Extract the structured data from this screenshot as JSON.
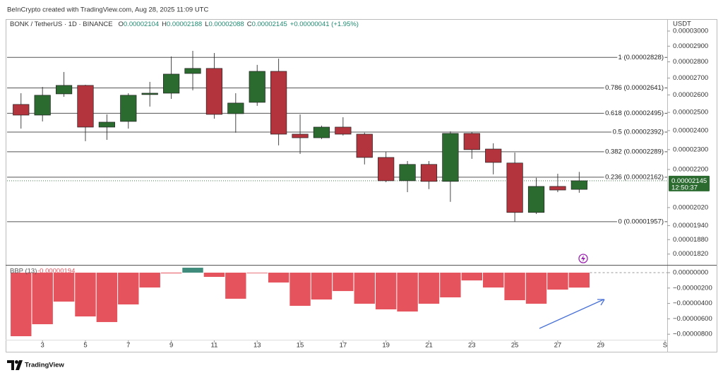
{
  "chart_data": [
    {
      "type": "candlestick",
      "title": "BeInCrypto created with TradingView.com, Aug 28, 2025 11:09 UTC",
      "symbol": "BONK / TetherUS · 1D · BINANCE",
      "ohlc_keys": [
        "O",
        "H",
        "L",
        "C"
      ],
      "change": "+0.00000041 (+1.95%)",
      "currency": "USDT",
      "countdown": "12:50:37",
      "x": [
        2,
        3,
        4,
        5,
        6,
        7,
        8,
        9,
        10,
        11,
        12,
        13,
        14,
        15,
        16,
        17,
        18,
        19,
        20,
        21,
        22,
        23,
        24,
        25,
        26,
        27,
        28
      ],
      "open": [
        2.545e-05,
        2.485e-05,
        2.606e-05,
        2.656e-05,
        2.419e-05,
        2.45e-05,
        2.602e-05,
        2.61e-05,
        2.728e-05,
        2.759e-05,
        2.493e-05,
        2.557e-05,
        2.741e-05,
        2.381e-05,
        2.362e-05,
        2.419e-05,
        2.381e-05,
        2.26e-05,
        2.145e-05,
        2.225e-05,
        2.142e-05,
        2.385e-05,
        2.303e-05,
        2.232e-05,
        1.998e-05,
        2.118e-05,
        2.104e-05
      ],
      "high": [
        2.61e-05,
        2.647e-05,
        2.737e-05,
        2.66e-05,
        2.489e-05,
        2.61e-05,
        2.677e-05,
        2.834e-05,
        2.87e-05,
        2.856e-05,
        2.61e-05,
        2.781e-05,
        2.82e-05,
        2.489e-05,
        2.427e-05,
        2.473e-05,
        2.389e-05,
        2.289e-05,
        2.242e-05,
        2.242e-05,
        2.396e-05,
        2.392e-05,
        2.333e-05,
        2.285e-05,
        2.159e-05,
        2.179e-05,
        2.188e-05
      ],
      "low": [
        2.411e-05,
        2.45e-05,
        2.589e-05,
        2.344e-05,
        2.351e-05,
        2.411e-05,
        2.533e-05,
        2.577e-05,
        2.627e-05,
        2.465e-05,
        2.389e-05,
        2.537e-05,
        2.322e-05,
        2.278e-05,
        2.355e-05,
        2.374e-05,
        2.225e-05,
        2.138e-05,
        2.091e-05,
        2.105e-05,
        2.046e-05,
        2.253e-05,
        2.176e-05,
        1.957e-05,
        1.991e-05,
        2.091e-05,
        2.088e-05
      ],
      "close": [
        2.485e-05,
        2.598e-05,
        2.656e-05,
        2.419e-05,
        2.446e-05,
        2.598e-05,
        2.61e-05,
        2.724e-05,
        2.759e-05,
        2.489e-05,
        2.553e-05,
        2.741e-05,
        2.381e-05,
        2.362e-05,
        2.419e-05,
        2.381e-05,
        2.26e-05,
        2.145e-05,
        2.225e-05,
        2.142e-05,
        2.385e-05,
        2.3e-05,
        2.235e-05,
        1.998e-05,
        2.118e-05,
        2.101e-05,
        2.145e-05
      ],
      "up_color": "#2b6b30",
      "down_color": "#b3343d",
      "xlim": [
        1.35,
        32.1
      ],
      "ylim": [
        1.785e-05,
        3.067e-05
      ],
      "log_scale": true,
      "yticks": [
        {
          "value": 3e-05,
          "label": "0.00003000"
        },
        {
          "value": 2.9e-05,
          "label": "0.00002900"
        },
        {
          "value": 2.8e-05,
          "label": "0.00002800"
        },
        {
          "value": 2.7e-05,
          "label": "0.00002700"
        },
        {
          "value": 2.6e-05,
          "label": "0.00002600"
        },
        {
          "value": 2.5e-05,
          "label": "0.00002500"
        },
        {
          "value": 2.4e-05,
          "label": "0.00002400"
        },
        {
          "value": 2.3e-05,
          "label": "0.00002300"
        },
        {
          "value": 2.2e-05,
          "label": "0.00002200"
        },
        {
          "value": 2.02e-05,
          "label": "0.00002020"
        },
        {
          "value": 1.94e-05,
          "label": "0.00001940"
        },
        {
          "value": 1.88e-05,
          "label": "0.00001880"
        },
        {
          "value": 1.82e-05,
          "label": "0.00001820"
        }
      ],
      "levels": [
        {
          "value": 2.828e-05,
          "label": "1 (0.00002828)"
        },
        {
          "value": 2.641e-05,
          "label": "0.786 (0.00002641)"
        },
        {
          "value": 2.495e-05,
          "label": "0.618 (0.00002495)"
        },
        {
          "value": 2.392e-05,
          "label": "0.5 (0.00002392)"
        },
        {
          "value": 2.289e-05,
          "label": "0.382 (0.00002289)"
        },
        {
          "value": 2.162e-05,
          "label": "0.236 (0.00002162)"
        },
        {
          "value": 1.957e-05,
          "label": "0 (0.00001957)"
        }
      ]
    },
    {
      "type": "bar",
      "title": "BBP (13)",
      "x": [
        2,
        3,
        4,
        5,
        6,
        7,
        8,
        9,
        10,
        11,
        12,
        13,
        14,
        15,
        16,
        17,
        18,
        19,
        20,
        21,
        22,
        23,
        24,
        25,
        26,
        27,
        28
      ],
      "values": [
        -8.26e-06,
        -6.7e-06,
        -3.76e-06,
        -5.69e-06,
        -6.42e-06,
        -4.13e-06,
        -1.93e-06,
        -9e-08,
        6.4e-07,
        -5.5e-07,
        -3.39e-06,
        -5e-08,
        -1.28e-06,
        -4.31e-06,
        -3.49e-06,
        -2.39e-06,
        -4.04e-06,
        -4.77e-06,
        -5.05e-06,
        -4.04e-06,
        -3.21e-06,
        -1.01e-06,
        -1.93e-06,
        -3.58e-06,
        -4.04e-06,
        -2.2e-06,
        -1.94e-06
      ],
      "negative_color": "#e5535d",
      "positive_color": "#3f8c7c",
      "xlim": [
        1.35,
        32.1
      ],
      "ylim": [
        -8.81e-06,
        9.2e-07
      ],
      "yticks": [
        {
          "value": 0,
          "label": "0.00000000"
        },
        {
          "value": -2e-06,
          "label": "−0.00000200"
        },
        {
          "value": -4e-06,
          "label": "−0.00000400"
        },
        {
          "value": -6e-06,
          "label": "−0.00000600"
        },
        {
          "value": -8e-06,
          "label": "−0.00000800"
        }
      ],
      "xticks": [
        3,
        5,
        7,
        9,
        11,
        13,
        15,
        17,
        19,
        21,
        23,
        25,
        27,
        29,
        {
          "value": 32,
          "label": "S"
        }
      ]
    }
  ],
  "brand": "TradingView"
}
